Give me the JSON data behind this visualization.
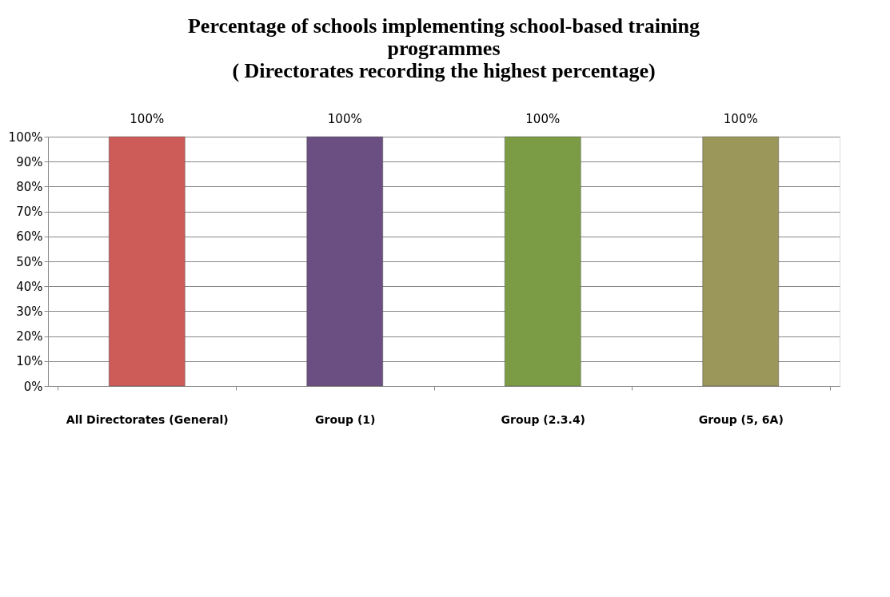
{
  "chart_data": {
    "type": "bar",
    "title": "Percentage of schools implementing school-based training\nprogrammes\n( Directorates recording the highest percentage)",
    "categories": [
      "All Directorates (General)",
      "Group (1)",
      "Group (2.3.4)",
      "Group (5, 6A)"
    ],
    "values": [
      100,
      100,
      100,
      100
    ],
    "colors": [
      "#cd5b57",
      "#6b4f82",
      "#7b9c45",
      "#9b9659"
    ],
    "value_labels": [
      "100%",
      "100%",
      "100%",
      "100%"
    ],
    "ylim": [
      0,
      100
    ],
    "yticks": [
      {
        "value": 0,
        "label": "0%"
      },
      {
        "value": 10,
        "label": "10%"
      },
      {
        "value": 20,
        "label": "20%"
      },
      {
        "value": 30,
        "label": "30%"
      },
      {
        "value": 40,
        "label": "40%"
      },
      {
        "value": 50,
        "label": "50%"
      },
      {
        "value": 60,
        "label": "60%"
      },
      {
        "value": 70,
        "label": "70%"
      },
      {
        "value": 80,
        "label": "80%"
      },
      {
        "value": 90,
        "label": "90%"
      },
      {
        "value": 100,
        "label": "100%"
      }
    ],
    "grid": "y",
    "legend": false
  }
}
